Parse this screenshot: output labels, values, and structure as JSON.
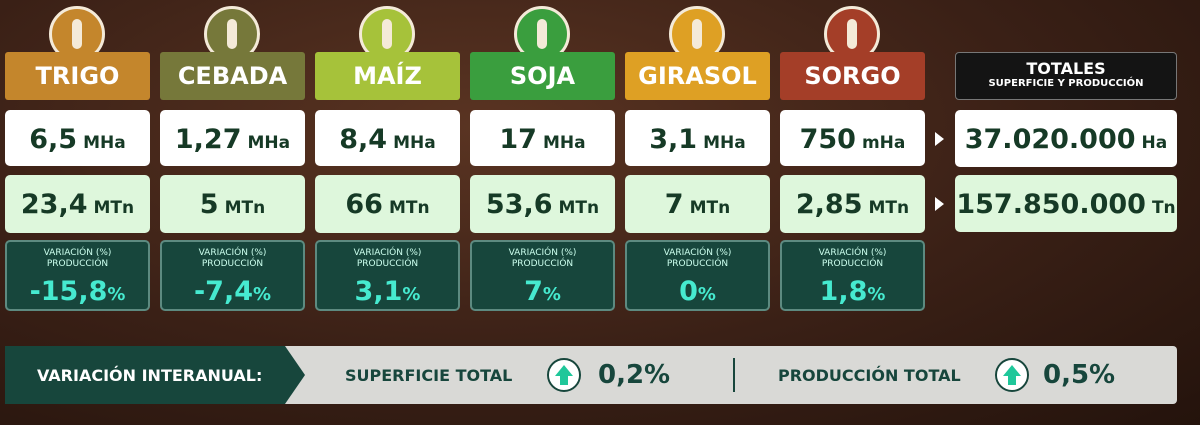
{
  "crops": [
    {
      "name": "TRIGO",
      "color": "#c4862c",
      "area": "6,5",
      "area_unit": "MHa",
      "production": "23,4",
      "production_unit": "MTn",
      "variation_label": "VARIACIÓN (%)",
      "variation_sublabel": "PRODUCCIÓN",
      "variation": "-15,8",
      "variation_unit": "%"
    },
    {
      "name": "CEBADA",
      "color": "#76783a",
      "area": "1,27",
      "area_unit": "MHa",
      "production": "5",
      "production_unit": "MTn",
      "variation_label": "VARIACIÓN (%)",
      "variation_sublabel": "PRODUCCIÓN",
      "variation": "-7,4",
      "variation_unit": "%"
    },
    {
      "name": "MAÍZ",
      "color": "#a6c23a",
      "area": "8,4",
      "area_unit": "MHa",
      "production": "66",
      "production_unit": "MTn",
      "variation_label": "VARIACIÓN (%)",
      "variation_sublabel": "PRODUCCIÓN",
      "variation": "3,1",
      "variation_unit": "%"
    },
    {
      "name": "SOJA",
      "color": "#3a9e3e",
      "area": "17",
      "area_unit": "MHa",
      "production": "53,6",
      "production_unit": "MTn",
      "variation_label": "VARIACIÓN (%)",
      "variation_sublabel": "PRODUCCIÓN",
      "variation": "7",
      "variation_unit": "%"
    },
    {
      "name": "GIRASOL",
      "color": "#dea024",
      "area": "3,1",
      "area_unit": "MHa",
      "production": "7",
      "production_unit": "MTn",
      "variation_label": "VARIACIÓN (%)",
      "variation_sublabel": "PRODUCCIÓN",
      "variation": "0",
      "variation_unit": "%"
    },
    {
      "name": "SORGO",
      "color": "#a43e28",
      "area": "750",
      "area_unit": "mHa",
      "production": "2,85",
      "production_unit": "MTn",
      "variation_label": "VARIACIÓN (%)",
      "variation_sublabel": "PRODUCCIÓN",
      "variation": "1,8",
      "variation_unit": "%"
    }
  ],
  "totals": {
    "title": "TOTALES",
    "subtitle": "SUPERFICIE Y PRODUCCIÓN",
    "area": "37.020.000",
    "area_unit": "Ha",
    "production": "157.850.000",
    "production_unit": "Tn"
  },
  "footer": {
    "label": "VARIACIÓN INTERANUAL:",
    "surface_label": "SUPERFICIE TOTAL",
    "surface_value": "0,2%",
    "production_label": "PRODUCCIÓN TOTAL",
    "production_value": "0,5%"
  }
}
